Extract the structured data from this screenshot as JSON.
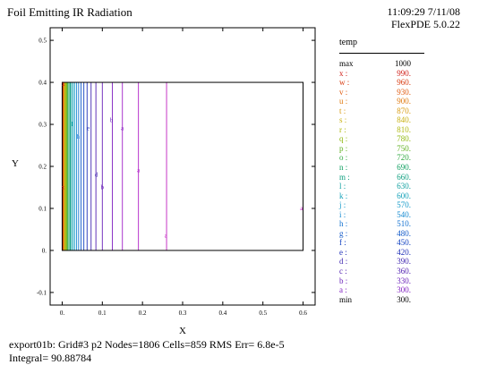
{
  "header": {
    "title": "Foil Emitting IR Radiation",
    "timestamp": "11:09:29 7/11/08",
    "version": "FlexPDE 5.0.22"
  },
  "chart_data": {
    "type": "contour",
    "xlabel": "X",
    "ylabel": "Y",
    "xlim": [
      -0.03,
      0.63
    ],
    "ylim": [
      -0.13,
      0.53
    ],
    "x_ticks": [
      "0.",
      "0.1",
      "0.2",
      "0.3",
      "0.4",
      "0.5",
      "0.6"
    ],
    "y_ticks": [
      "-0.1",
      "0.",
      "0.1",
      "0.2",
      "0.3",
      "0.4",
      "0.5"
    ],
    "domain_box": {
      "x": [
        0,
        0.6
      ],
      "y": [
        0,
        0.4
      ]
    },
    "contours": [
      {
        "label": "x",
        "x": 0.001,
        "color": "#d0201a"
      },
      {
        "label": "w",
        "x": 0.002,
        "color": "#d83a10"
      },
      {
        "label": "v",
        "x": 0.003,
        "color": "#e05a10"
      },
      {
        "label": "u",
        "x": 0.004,
        "color": "#e07a10"
      },
      {
        "label": "t",
        "x": 0.005,
        "color": "#d89a10"
      },
      {
        "label": "s",
        "x": 0.006,
        "color": "#c8b010"
      },
      {
        "label": "r",
        "x": 0.008,
        "color": "#b0b810"
      },
      {
        "label": "q",
        "x": 0.01,
        "color": "#90b810"
      },
      {
        "label": "p",
        "x": 0.012,
        "color": "#60b020"
      },
      {
        "label": "o",
        "x": 0.014,
        "color": "#30a840"
      },
      {
        "label": "n",
        "x": 0.017,
        "color": "#10a060"
      },
      {
        "label": "m",
        "x": 0.02,
        "color": "#10a080"
      },
      {
        "label": "l",
        "x": 0.023,
        "color": "#10a0a0"
      },
      {
        "label": "k",
        "x": 0.027,
        "color": "#10a0b8"
      },
      {
        "label": "j",
        "x": 0.031,
        "color": "#1098c8"
      },
      {
        "label": "i",
        "x": 0.036,
        "color": "#1088d0"
      },
      {
        "label": "h",
        "x": 0.041,
        "color": "#1070d0"
      },
      {
        "label": "g",
        "x": 0.047,
        "color": "#1058c8"
      },
      {
        "label": "f",
        "x": 0.054,
        "color": "#1040c0"
      },
      {
        "label": "e",
        "x": 0.062,
        "color": "#2030b8"
      },
      {
        "label": "d",
        "x": 0.072,
        "color": "#4028b0"
      },
      {
        "label": "c",
        "x": 0.084,
        "color": "#5020b0"
      },
      {
        "label": "b",
        "x": 0.1,
        "color": "#6820b8"
      },
      {
        "label": "a",
        "x": 0.125,
        "color": "#8020c0"
      },
      {
        "label": "a",
        "x": 0.15,
        "color": "#a020c8"
      },
      {
        "label": "a",
        "x": 0.19,
        "color": "#b020c8"
      },
      {
        "label": "a",
        "x": 0.26,
        "color": "#c020c0"
      }
    ],
    "contour_labels": [
      {
        "text": "x",
        "x": 0.002,
        "y": 0.15,
        "color": "#d0201a"
      },
      {
        "text": "x",
        "x": 0.003,
        "y": 0.396,
        "color": "#d0201a"
      },
      {
        "text": "l",
        "x": 0.025,
        "y": 0.3,
        "color": "#10a0a0"
      },
      {
        "text": "h",
        "x": 0.04,
        "y": 0.27,
        "color": "#1070d0"
      },
      {
        "text": "e",
        "x": 0.065,
        "y": 0.29,
        "color": "#2030b8"
      },
      {
        "text": "d",
        "x": 0.085,
        "y": 0.18,
        "color": "#4028b0"
      },
      {
        "text": "b",
        "x": 0.1,
        "y": 0.15,
        "color": "#6820b8"
      },
      {
        "text": "b",
        "x": 0.123,
        "y": 0.31,
        "color": "#6820b8"
      },
      {
        "text": "a",
        "x": 0.15,
        "y": 0.29,
        "color": "#8020c0"
      },
      {
        "text": "a",
        "x": 0.19,
        "y": 0.19,
        "color": "#b020c8"
      },
      {
        "text": "a",
        "x": 0.258,
        "y": 0.035,
        "color": "#c020c0"
      },
      {
        "text": "a",
        "x": 0.596,
        "y": 0.1,
        "color": "#c020c0"
      }
    ]
  },
  "legend": {
    "title": "temp",
    "entries": [
      {
        "label": "max",
        "value": "1000",
        "color": "#000000"
      },
      {
        "label": "x :",
        "value": "990.",
        "color": "#d0201a"
      },
      {
        "label": "w :",
        "value": "960.",
        "color": "#d83a10"
      },
      {
        "label": "v :",
        "value": "930.",
        "color": "#e05a10"
      },
      {
        "label": "u :",
        "value": "900.",
        "color": "#e07a10"
      },
      {
        "label": "t :",
        "value": "870.",
        "color": "#d89a10"
      },
      {
        "label": "s :",
        "value": "840.",
        "color": "#c8b010"
      },
      {
        "label": "r :",
        "value": "810.",
        "color": "#b0b810"
      },
      {
        "label": "q :",
        "value": "780.",
        "color": "#90b810"
      },
      {
        "label": "p :",
        "value": "750.",
        "color": "#60b020"
      },
      {
        "label": "o :",
        "value": "720.",
        "color": "#30a840"
      },
      {
        "label": "n :",
        "value": "690.",
        "color": "#10a060"
      },
      {
        "label": "m :",
        "value": "660.",
        "color": "#10a080"
      },
      {
        "label": "l :",
        "value": "630.",
        "color": "#10a0a0"
      },
      {
        "label": "k :",
        "value": "600.",
        "color": "#10a0b8"
      },
      {
        "label": "j :",
        "value": "570.",
        "color": "#1098c8"
      },
      {
        "label": "i :",
        "value": "540.",
        "color": "#1088d0"
      },
      {
        "label": "h :",
        "value": "510.",
        "color": "#1070d0"
      },
      {
        "label": "g :",
        "value": "480.",
        "color": "#1058c8"
      },
      {
        "label": "f :",
        "value": "450.",
        "color": "#1040c0"
      },
      {
        "label": "e :",
        "value": "420.",
        "color": "#2030b8"
      },
      {
        "label": "d :",
        "value": "390.",
        "color": "#4028b0"
      },
      {
        "label": "c :",
        "value": "360.",
        "color": "#5020b0"
      },
      {
        "label": "b :",
        "value": "330.",
        "color": "#6820b8"
      },
      {
        "label": "a :",
        "value": "300.",
        "color": "#8020c0"
      },
      {
        "label": "min",
        "value": "300.",
        "color": "#000000"
      }
    ]
  },
  "footer": {
    "line1": "export01b:  Grid#3  p2  Nodes=1806 Cells=859 RMS Err= 6.8e-5",
    "line2": "Integral=   90.88784"
  }
}
